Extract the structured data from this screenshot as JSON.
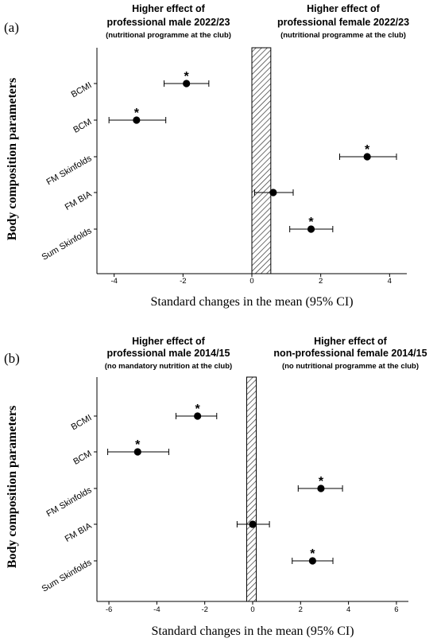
{
  "chart_data": [
    {
      "panel": "(a)",
      "type": "scatter",
      "left_header": {
        "main_line1": "Higher effect of",
        "main_line2": "professional male 2022/23",
        "sub": "(nutritional programme at the club)"
      },
      "right_header": {
        "main_line1": "Higher effect of",
        "main_line2": "professional female 2022/23",
        "sub": "(nutritional programme at the club)"
      },
      "ylabel": "Body composition parameters",
      "xlabel": "Standard changes in the mean (95% CI)",
      "xlim": [
        -4.5,
        4.5
      ],
      "xticks": [
        -4,
        -2,
        0,
        2,
        4
      ],
      "band": [
        0,
        0.55
      ],
      "categories": [
        "BCMI",
        "BCM",
        "FM Skinfolds",
        "FM BIA",
        "Sum Skinfolds"
      ],
      "points": [
        {
          "category": "BCMI",
          "mean": -1.9,
          "ci_low": -2.55,
          "ci_high": -1.25,
          "significant": true
        },
        {
          "category": "BCM",
          "mean": -3.35,
          "ci_low": -4.15,
          "ci_high": -2.5,
          "significant": true
        },
        {
          "category": "FM Skinfolds",
          "mean": 3.35,
          "ci_low": 2.55,
          "ci_high": 4.2,
          "significant": true
        },
        {
          "category": "FM BIA",
          "mean": 0.62,
          "ci_low": 0.08,
          "ci_high": 1.2,
          "significant": false
        },
        {
          "category": "Sum Skinfolds",
          "mean": 1.72,
          "ci_low": 1.1,
          "ci_high": 2.35,
          "significant": true
        }
      ],
      "significance_marker": "*"
    },
    {
      "panel": "(b)",
      "type": "scatter",
      "left_header": {
        "main_line1": "Higher effect of",
        "main_line2": "professional male 2014/15",
        "sub": "(no mandatory nutrition at the club)"
      },
      "right_header": {
        "main_line1": "Higher effect of",
        "main_line2": "non-professional female 2014/15",
        "sub": "(no nutritional programme at the club)"
      },
      "ylabel": "Body composition parameters",
      "xlabel": "Standard changes in the mean (95% CI)",
      "xlim": [
        -6.5,
        6.5
      ],
      "xticks": [
        -6,
        -4,
        -2,
        0,
        2,
        4,
        6
      ],
      "band": [
        -0.25,
        0.15
      ],
      "categories": [
        "BCMI",
        "BCM",
        "FM Skinfolds",
        "FM BIA",
        "Sum Skinfolds"
      ],
      "points": [
        {
          "category": "BCMI",
          "mean": -2.3,
          "ci_low": -3.2,
          "ci_high": -1.5,
          "significant": true
        },
        {
          "category": "BCM",
          "mean": -4.8,
          "ci_low": -6.05,
          "ci_high": -3.5,
          "significant": true
        },
        {
          "category": "FM Skinfolds",
          "mean": 2.85,
          "ci_low": 1.9,
          "ci_high": 3.75,
          "significant": true
        },
        {
          "category": "FM BIA",
          "mean": 0.0,
          "ci_low": -0.65,
          "ci_high": 0.7,
          "significant": false
        },
        {
          "category": "Sum Skinfolds",
          "mean": 2.5,
          "ci_low": 1.65,
          "ci_high": 3.35,
          "significant": true
        }
      ],
      "significance_marker": "*"
    }
  ]
}
